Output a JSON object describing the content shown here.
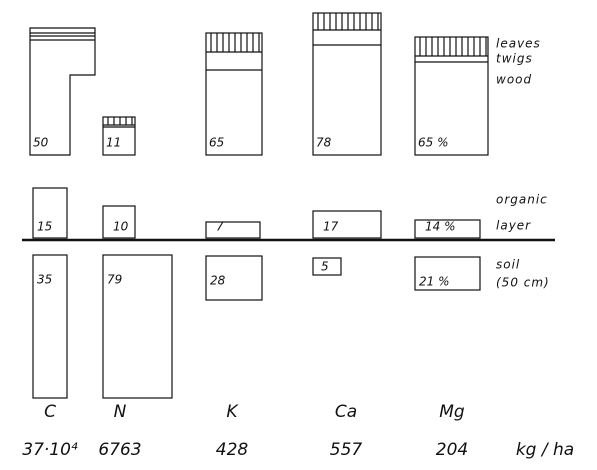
{
  "columns": [
    {
      "element": "C",
      "amount": "37·10⁴",
      "tree": "50",
      "organic": "15",
      "soil": "35"
    },
    {
      "element": "N",
      "amount": "6763",
      "tree": "11",
      "organic": "10",
      "soil": "79"
    },
    {
      "element": "K",
      "amount": "428",
      "tree": "65",
      "organic": "7",
      "soil": "28"
    },
    {
      "element": "Ca",
      "amount": "557",
      "tree": "78",
      "organic": "17",
      "soil": "5"
    },
    {
      "element": "Mg",
      "amount": "204",
      "tree": "65 %",
      "organic": "14 %",
      "soil": "21 %"
    }
  ],
  "compartments": {
    "leaves": "leaves",
    "twigs": "twigs",
    "wood": "wood",
    "organic": "organic",
    "layer": "layer",
    "soil": "soil",
    "depth": "(50 cm)"
  },
  "unit": "kg / ha"
}
